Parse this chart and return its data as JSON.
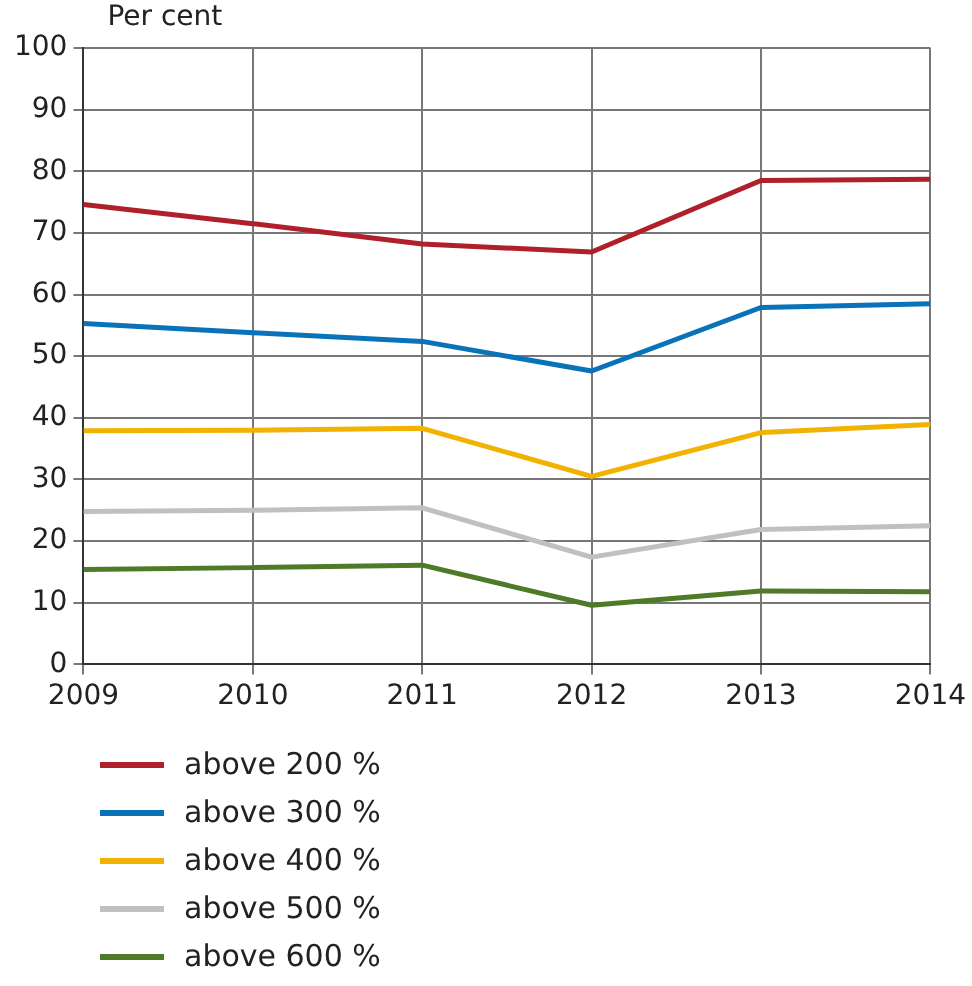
{
  "chart_data": {
    "type": "line",
    "ylabel": "Per cent",
    "x": [
      2009,
      2010,
      2011,
      2012,
      2013,
      2014
    ],
    "xlim": [
      2009,
      2014
    ],
    "xticks": [
      2009,
      2010,
      2011,
      2012,
      2013,
      2014
    ],
    "ylim": [
      0,
      100
    ],
    "yticks": [
      0,
      10,
      20,
      30,
      40,
      50,
      60,
      70,
      80,
      90,
      100
    ],
    "grid": true,
    "legend": "bottom",
    "marker": "none",
    "line_style": "solid",
    "series": [
      {
        "name": "above 200 %",
        "color": "#b0202a",
        "values": [
          74.6,
          71.5,
          68.2,
          66.9,
          78.5,
          78.7
        ]
      },
      {
        "name": "above 300 %",
        "color": "#0a72b8",
        "values": [
          55.3,
          53.8,
          52.4,
          47.6,
          57.9,
          58.5
        ]
      },
      {
        "name": "above 400 %",
        "color": "#f2b200",
        "values": [
          37.9,
          38.0,
          38.3,
          30.5,
          37.6,
          38.9
        ]
      },
      {
        "name": "above 500 %",
        "color": "#c0c0c0",
        "values": [
          24.8,
          25.0,
          25.4,
          17.4,
          21.9,
          22.5
        ]
      },
      {
        "name": "above 600 %",
        "color": "#4f7a28",
        "values": [
          15.4,
          15.7,
          16.1,
          9.6,
          11.9,
          11.8
        ]
      }
    ]
  }
}
